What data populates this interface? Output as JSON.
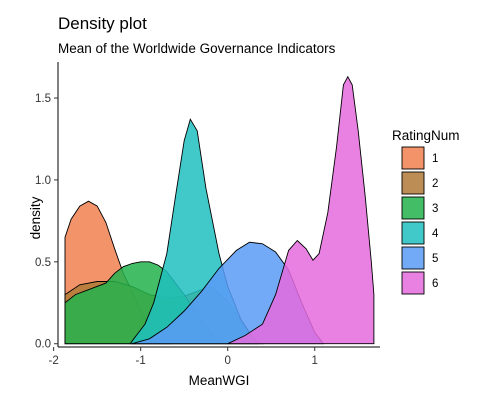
{
  "chart_data": {
    "type": "area",
    "subtype": "density",
    "title": "Density plot",
    "subtitle": "Mean of the Worldwide Governance Indicators",
    "xlabel": "MeanWGI",
    "ylabel": "density",
    "xlim": [
      -1.95,
      1.75
    ],
    "ylim": [
      -0.02,
      1.72
    ],
    "xticks": [
      -2,
      -1,
      0,
      1
    ],
    "xtick_labels": [
      "-2",
      "-1",
      "0",
      "1"
    ],
    "yticks": [
      0.0,
      0.5,
      1.0,
      1.5
    ],
    "ytick_labels": [
      "0.0",
      "0.5",
      "1.0",
      "1.5"
    ],
    "grid": false,
    "legend": {
      "title": "RatingNum",
      "position": "right"
    },
    "series": [
      {
        "name": "1",
        "color": "#F08050",
        "points": [
          [
            -1.87,
            0
          ],
          [
            -1.87,
            0.65
          ],
          [
            -1.8,
            0.76
          ],
          [
            -1.7,
            0.84
          ],
          [
            -1.6,
            0.87
          ],
          [
            -1.5,
            0.84
          ],
          [
            -1.4,
            0.74
          ],
          [
            -1.3,
            0.58
          ],
          [
            -1.2,
            0.43
          ],
          [
            -1.1,
            0.32
          ],
          [
            -1.0,
            0.2
          ],
          [
            -0.9,
            0.1
          ],
          [
            -0.8,
            0.04
          ],
          [
            -0.7,
            0.01
          ],
          [
            -0.65,
            0
          ]
        ]
      },
      {
        "name": "2",
        "color": "#B07A37",
        "points": [
          [
            -1.87,
            0
          ],
          [
            -1.87,
            0.3
          ],
          [
            -1.7,
            0.36
          ],
          [
            -1.5,
            0.38
          ],
          [
            -1.3,
            0.38
          ],
          [
            -1.1,
            0.35
          ],
          [
            -0.9,
            0.3
          ],
          [
            -0.7,
            0.28
          ],
          [
            -0.5,
            0.29
          ],
          [
            -0.3,
            0.33
          ],
          [
            -0.2,
            0.35
          ],
          [
            0.0,
            0.26
          ],
          [
            0.2,
            0.1
          ],
          [
            0.35,
            0
          ]
        ]
      },
      {
        "name": "3",
        "color": "#22B34C",
        "points": [
          [
            -1.87,
            0
          ],
          [
            -1.87,
            0.25
          ],
          [
            -1.75,
            0.3
          ],
          [
            -1.6,
            0.33
          ],
          [
            -1.4,
            0.37
          ],
          [
            -1.3,
            0.43
          ],
          [
            -1.2,
            0.47
          ],
          [
            -1.1,
            0.49
          ],
          [
            -1.0,
            0.5
          ],
          [
            -0.9,
            0.5
          ],
          [
            -0.8,
            0.48
          ],
          [
            -0.7,
            0.44
          ],
          [
            -0.6,
            0.37
          ],
          [
            -0.5,
            0.3
          ],
          [
            -0.4,
            0.22
          ],
          [
            -0.3,
            0.14
          ],
          [
            -0.2,
            0.07
          ],
          [
            -0.1,
            0.02
          ],
          [
            0.0,
            0
          ]
        ]
      },
      {
        "name": "4",
        "color": "#20BFBF",
        "points": [
          [
            -1.12,
            0
          ],
          [
            -1.05,
            0.05
          ],
          [
            -0.95,
            0.12
          ],
          [
            -0.85,
            0.25
          ],
          [
            -0.7,
            0.55
          ],
          [
            -0.6,
            0.9
          ],
          [
            -0.5,
            1.24
          ],
          [
            -0.43,
            1.37
          ],
          [
            -0.35,
            1.3
          ],
          [
            -0.25,
            0.95
          ],
          [
            -0.1,
            0.55
          ],
          [
            0.0,
            0.35
          ],
          [
            0.15,
            0.15
          ],
          [
            0.3,
            0.03
          ],
          [
            0.4,
            0
          ]
        ]
      },
      {
        "name": "5",
        "color": "#5B9BF7",
        "points": [
          [
            -1.1,
            0
          ],
          [
            -0.9,
            0.03
          ],
          [
            -0.7,
            0.1
          ],
          [
            -0.5,
            0.2
          ],
          [
            -0.3,
            0.32
          ],
          [
            -0.1,
            0.46
          ],
          [
            0.1,
            0.57
          ],
          [
            0.25,
            0.62
          ],
          [
            0.4,
            0.61
          ],
          [
            0.55,
            0.56
          ],
          [
            0.7,
            0.45
          ],
          [
            0.85,
            0.25
          ],
          [
            1.0,
            0.07
          ],
          [
            1.1,
            0
          ]
        ]
      },
      {
        "name": "6",
        "color": "#E56BDE",
        "points": [
          [
            0.0,
            0
          ],
          [
            0.2,
            0.05
          ],
          [
            0.4,
            0.12
          ],
          [
            0.55,
            0.3
          ],
          [
            0.7,
            0.57
          ],
          [
            0.8,
            0.63
          ],
          [
            0.9,
            0.58
          ],
          [
            0.98,
            0.51
          ],
          [
            1.05,
            0.55
          ],
          [
            1.15,
            0.8
          ],
          [
            1.25,
            1.2
          ],
          [
            1.33,
            1.58
          ],
          [
            1.38,
            1.63
          ],
          [
            1.43,
            1.58
          ],
          [
            1.5,
            1.3
          ],
          [
            1.58,
            0.9
          ],
          [
            1.65,
            0.5
          ],
          [
            1.68,
            0.3
          ],
          [
            1.68,
            0
          ]
        ]
      }
    ]
  }
}
